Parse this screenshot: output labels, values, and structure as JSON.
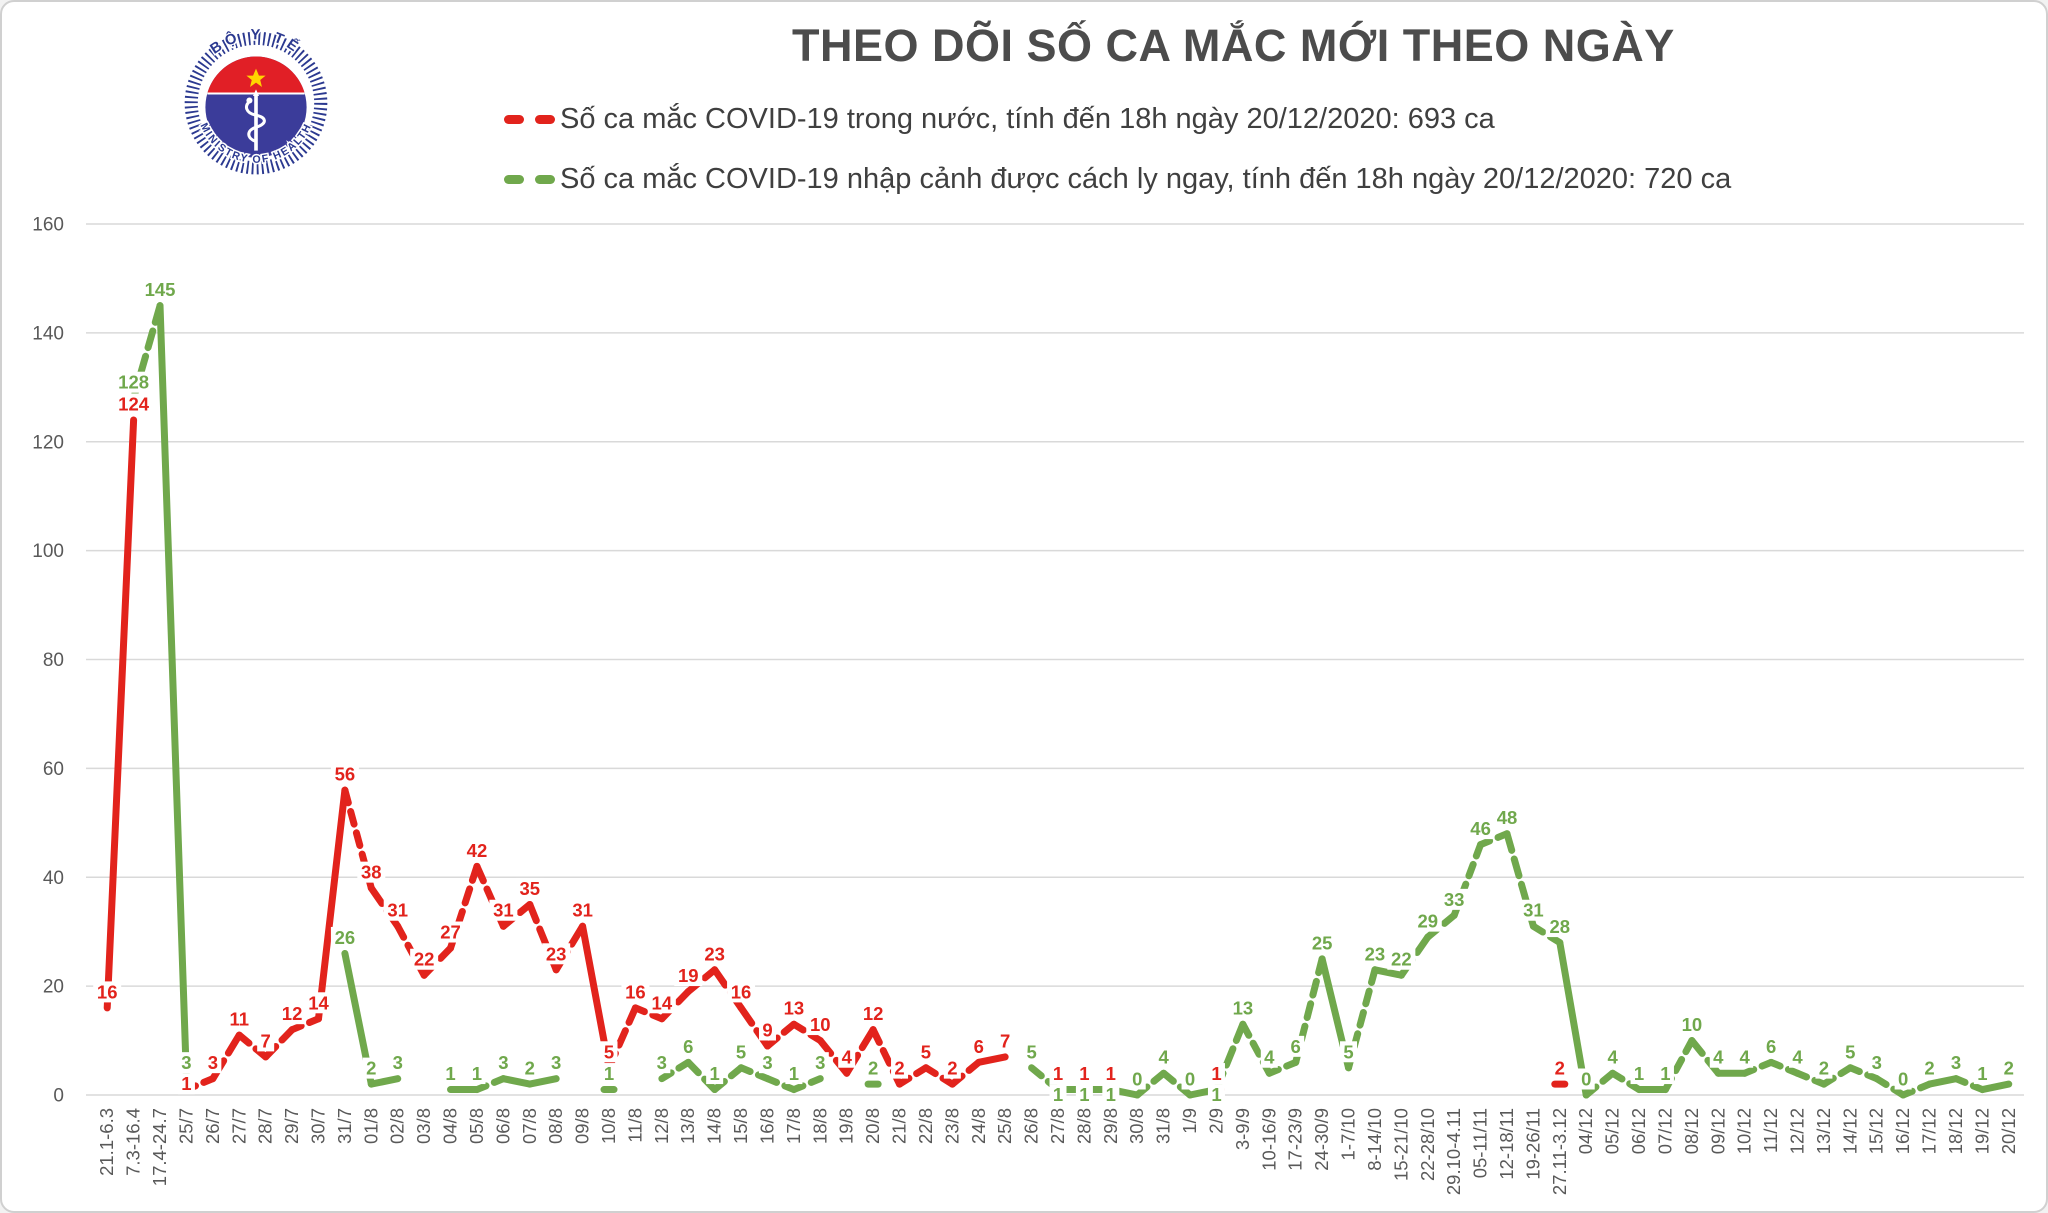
{
  "title": "THEO DÕI SỐ CA MẮC MỚI THEO NGÀY",
  "logo": {
    "top_text": "BỘ Y TẾ",
    "bottom_text": "MINISTRY OF HEALTH",
    "navy": "#2b3990",
    "disc": "#3b3c9a",
    "red": "#e11f26",
    "star": "#ffd400"
  },
  "legend": [
    {
      "label": "Số ca mắc COVID-19 trong nước, tính đến 18h ngày 20/12/2020:  693 ca",
      "color": "#e2231c"
    },
    {
      "label": "Số ca mắc COVID-19 nhập cảnh được cách ly ngay, tính đến 18h ngày 20/12/2020: 720 ca",
      "color": "#70a84c"
    }
  ],
  "colors": {
    "grid": "#d9d9d9",
    "axis_text": "#595959",
    "label_bg": "#ffffff"
  },
  "chart_data": {
    "type": "line",
    "title": "THEO DÕI SỐ CA MẮC MỚI THEO NGÀY",
    "xlabel": "",
    "ylabel": "",
    "ylim": [
      0,
      160
    ],
    "ytick_step": 20,
    "grid": true,
    "line_style": "dashed",
    "legend_position": "top",
    "categories": [
      "21.1-6.3",
      "7.3-16.4",
      "17.4-24.7",
      "25/7",
      "26/7",
      "27/7",
      "28/7",
      "29/7",
      "30/7",
      "31/7",
      "01/8",
      "02/8",
      "03/8",
      "04/8",
      "05/8",
      "06/8",
      "07/8",
      "08/8",
      "09/8",
      "10/8",
      "11/8",
      "12/8",
      "13/8",
      "14/8",
      "15/8",
      "16/8",
      "17/8",
      "18/8",
      "19/8",
      "20/8",
      "21/8",
      "22/8",
      "23/8",
      "24/8",
      "25/8",
      "26/8",
      "27/8",
      "28/8",
      "29/8",
      "30/8",
      "31/8",
      "1/9",
      "2/9",
      "3-9/9",
      "10-16/9",
      "17-23/9",
      "24-30/9",
      "1-7/10",
      "8-14/10",
      "15-21/10",
      "22-28/10",
      "29.10-4.11",
      "05-11/11",
      "12-18/11",
      "19-26/11",
      "27.11-3.12",
      "04/12",
      "05/12",
      "06/12",
      "07/12",
      "08/12",
      "09/12",
      "10/12",
      "11/12",
      "12/12",
      "13/12",
      "14/12",
      "15/12",
      "16/12",
      "17/12",
      "18/12",
      "19/12",
      "20/12"
    ],
    "series": [
      {
        "name": "Số ca mắc COVID-19 trong nước",
        "color": "#e2231c",
        "values": [
          16,
          124,
          null,
          1,
          3,
          11,
          7,
          12,
          14,
          56,
          38,
          31,
          22,
          27,
          42,
          31,
          35,
          23,
          31,
          5,
          16,
          14,
          19,
          23,
          16,
          9,
          13,
          10,
          4,
          12,
          2,
          5,
          2,
          6,
          7,
          null,
          1,
          1,
          1,
          null,
          null,
          null,
          1,
          null,
          null,
          null,
          null,
          null,
          null,
          null,
          null,
          null,
          null,
          null,
          null,
          2,
          null,
          null,
          null,
          null,
          null,
          null,
          null,
          null,
          null,
          null,
          null,
          null,
          null,
          null,
          null,
          null,
          null
        ]
      },
      {
        "name": "Số ca mắc COVID-19 nhập cảnh được cách ly ngay",
        "color": "#70a84c",
        "values": [
          null,
          128,
          145,
          3,
          null,
          null,
          null,
          null,
          null,
          26,
          2,
          3,
          null,
          1,
          1,
          3,
          2,
          3,
          null,
          1,
          null,
          3,
          6,
          1,
          5,
          3,
          1,
          3,
          null,
          2,
          null,
          null,
          null,
          null,
          null,
          5,
          1,
          1,
          1,
          0,
          4,
          0,
          1,
          13,
          4,
          6,
          25,
          5,
          23,
          22,
          29,
          33,
          46,
          48,
          31,
          28,
          0,
          4,
          1,
          1,
          10,
          4,
          4,
          6,
          4,
          2,
          5,
          3,
          0,
          2,
          3,
          1,
          2
        ]
      }
    ]
  }
}
